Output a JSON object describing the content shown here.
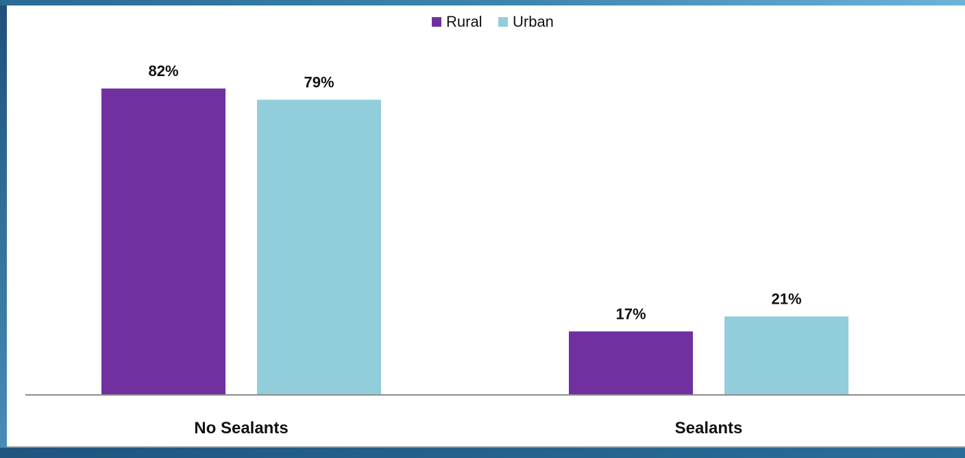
{
  "chart_data": {
    "type": "bar",
    "categories": [
      "No Sealants",
      "Sealants"
    ],
    "series": [
      {
        "name": "Rural",
        "values": [
          82,
          17
        ],
        "color": "#7030a0"
      },
      {
        "name": "Urban",
        "values": [
          79,
          21
        ],
        "color": "#92cddc"
      }
    ],
    "data_labels": [
      [
        "82%",
        "17%"
      ],
      [
        "79%",
        "21%"
      ]
    ],
    "title": "",
    "xlabel": "",
    "ylabel": "",
    "ylim": [
      0,
      100
    ],
    "grid": false,
    "legend": {
      "position": "top-center",
      "items": [
        {
          "label": "Rural",
          "color": "#7030a0"
        },
        {
          "label": "Urban",
          "color": "#92cddc"
        }
      ]
    }
  },
  "colors": {
    "frame": "#2f6f99",
    "axis": "#8c8c8c",
    "label_text": "#111111"
  }
}
